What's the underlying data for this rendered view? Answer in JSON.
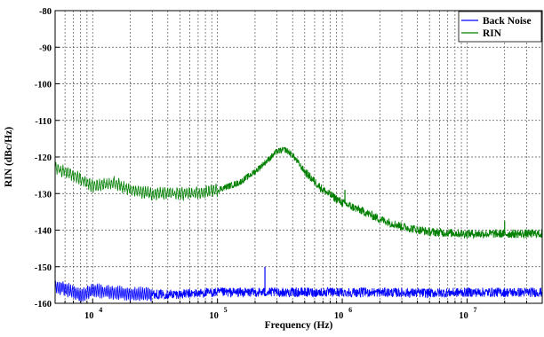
{
  "chart_data": {
    "type": "line",
    "title": "",
    "xlabel": "Frequency (Hz)",
    "ylabel": "RIN (dBc/Hz)",
    "xscale": "log",
    "xlim": [
      5000,
      40000000
    ],
    "ylim": [
      -160,
      -80
    ],
    "grid": true,
    "legend_position": "top-right",
    "yticks": [
      -80,
      -90,
      -100,
      -110,
      -120,
      -130,
      -140,
      -150,
      -160
    ],
    "ytick_labels": [
      "-80",
      "-90",
      "-100",
      "-110",
      "-120",
      "-130",
      "-140",
      "-150",
      "-160"
    ],
    "xticks": [
      10000,
      100000,
      1000000,
      10000000
    ],
    "xtick_base": "10",
    "xtick_exponents": [
      "4",
      "5",
      "6",
      "7"
    ],
    "series": [
      {
        "name": "Back Noise",
        "color": "#0000ff",
        "x": [
          5000,
          6000,
          7000,
          8000,
          10000,
          15000,
          20000,
          30000,
          50000,
          100000,
          200000,
          240000,
          300000,
          500000,
          1000000,
          2000000,
          5000000,
          10000000,
          20000000,
          40000000
        ],
        "y": [
          -155.5,
          -156.0,
          -157.0,
          -158.0,
          -156.5,
          -157.0,
          -157.5,
          -157.5,
          -157.5,
          -157.0,
          -157.0,
          -157.0,
          -157.0,
          -157.0,
          -157.0,
          -157.0,
          -157.2,
          -157.0,
          -157.0,
          -157.0
        ]
      },
      {
        "name": "RIN",
        "color": "#008000",
        "x": [
          5000,
          6000,
          8000,
          10000,
          15000,
          20000,
          30000,
          50000,
          70000,
          100000,
          150000,
          200000,
          250000,
          300000,
          350000,
          400000,
          500000,
          700000,
          1000000,
          1500000,
          2000000,
          3000000,
          5000000,
          10000000,
          20000000,
          40000000
        ],
        "y": [
          -123,
          -124,
          -126,
          -128,
          -127,
          -129,
          -130,
          -130,
          -130,
          -129,
          -127,
          -124,
          -121,
          -118.5,
          -118,
          -119.5,
          -124,
          -129,
          -132.5,
          -135,
          -137,
          -139,
          -140.5,
          -141,
          -141,
          -141
        ]
      }
    ],
    "spikes": [
      {
        "series": "Back Noise",
        "x": 240000,
        "y": -150
      },
      {
        "series": "RIN",
        "x": 1050000,
        "y": -129
      },
      {
        "series": "RIN",
        "x": 20000000,
        "y": -137.5
      }
    ]
  }
}
